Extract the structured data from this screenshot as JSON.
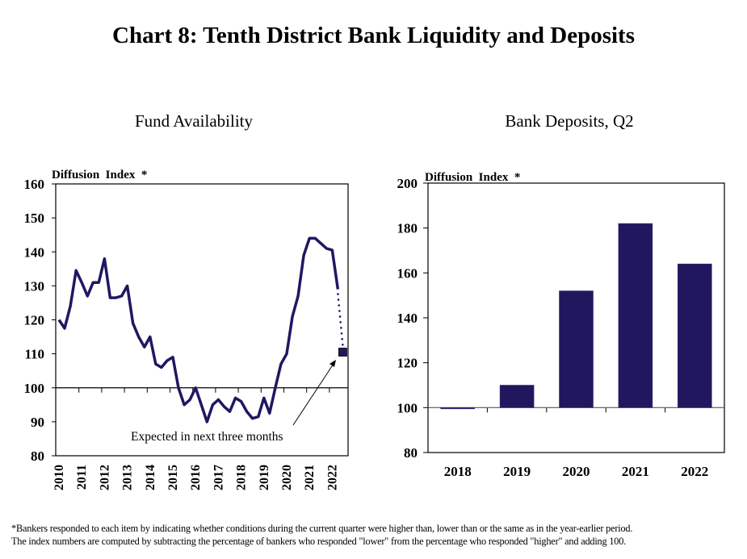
{
  "title": "Chart 8: Tenth District Bank Liquidity and Deposits",
  "footnote": [
    "*Bankers responded to each item by indicating whether conditions during the current quarter were higher than,  lower than or the same as in the year-earlier period.",
    "The index numbers are computed by subtracting the percentage of bankers who responded \"lower\" from the percentage who responded \"higher\" and adding 100."
  ],
  "colors": {
    "series": "#1e1862",
    "bar": "#21175e",
    "axis": "#000000"
  },
  "chart_data": [
    {
      "type": "line",
      "title": "Fund Availability",
      "ylabel": "Diffusion  Index  *",
      "xlabel": "",
      "ylim": [
        80,
        160
      ],
      "yticks": [
        80,
        90,
        100,
        110,
        120,
        130,
        140,
        150,
        160
      ],
      "x_tick_labels": [
        "2010",
        "2011",
        "2012",
        "2013",
        "2014",
        "2015",
        "2016",
        "2017",
        "2018",
        "2019",
        "2020",
        "2021",
        "2022"
      ],
      "frequency": "quarterly",
      "x_start": "2010Q1",
      "series": [
        {
          "name": "Fund Availability",
          "values": [
            120,
            117.5,
            124,
            134.5,
            131,
            127,
            131,
            131,
            138,
            126.5,
            126.5,
            127,
            130,
            119,
            115,
            112,
            115,
            107,
            106,
            108,
            109,
            100,
            95,
            96.5,
            100,
            95,
            90,
            95,
            96.5,
            94.5,
            93,
            97,
            96,
            93,
            91,
            91.5,
            97,
            92.5,
            100,
            107,
            110,
            121,
            127,
            139,
            144,
            144,
            142.5,
            141,
            140.5,
            129
          ]
        }
      ],
      "expected": {
        "value": 110.5,
        "label": "Expected in next three months"
      },
      "grid": false,
      "baseline": 100
    },
    {
      "type": "bar",
      "title": "Bank Deposits, Q2",
      "ylabel": "Diffusion  Index  *",
      "xlabel": "",
      "ylim": [
        80,
        200
      ],
      "yticks": [
        80,
        100,
        120,
        140,
        160,
        180,
        200
      ],
      "categories": [
        "2018",
        "2019",
        "2020",
        "2021",
        "2022"
      ],
      "values": [
        99.5,
        110,
        152,
        182,
        164
      ],
      "grid": false,
      "baseline": 100
    }
  ]
}
